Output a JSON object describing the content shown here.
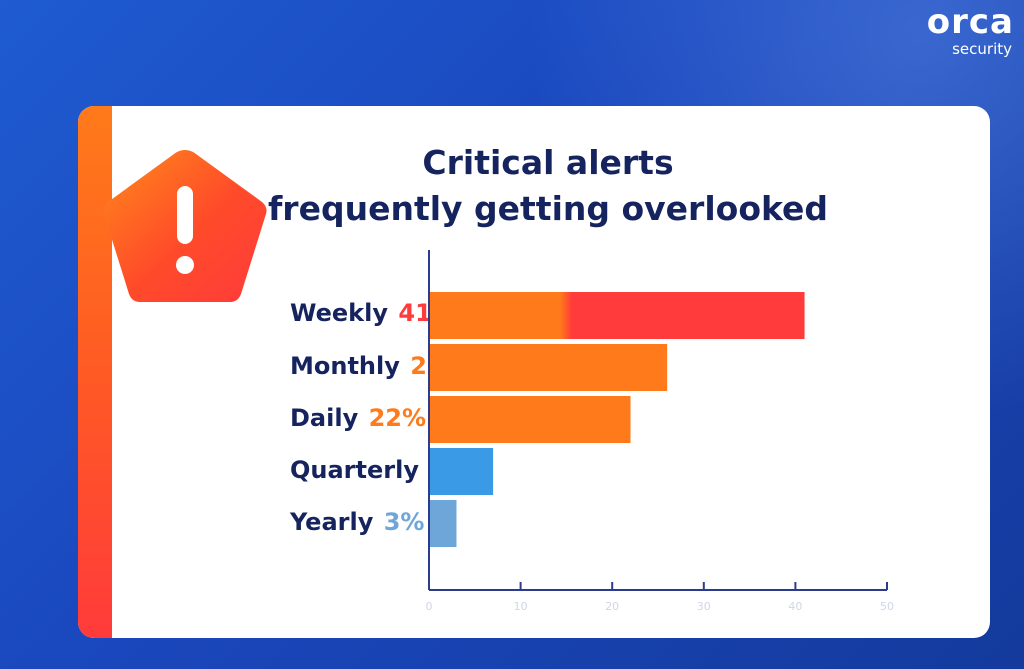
{
  "brand": {
    "name": "orca",
    "tagline": "security"
  },
  "colors": {
    "weekly": "#ff3b3b",
    "monthly": "#ff7a1a",
    "daily": "#ff7a1a",
    "quarterly": "#3b9ae6",
    "yearly": "#6ea6d9",
    "title": "#15235e"
  },
  "chart_data": {
    "type": "bar",
    "orientation": "horizontal",
    "title": "Critical alerts\nfrequently getting overlooked",
    "categories": [
      "Weekly",
      "Monthly",
      "Daily",
      "Quarterly",
      "Yearly"
    ],
    "values": [
      41,
      26,
      22,
      7,
      3
    ],
    "value_labels": [
      "41%",
      "26%",
      "22%",
      "7%",
      "3%"
    ],
    "xlim": [
      0,
      50
    ],
    "xticks": [
      0,
      10,
      20,
      30,
      40,
      50
    ],
    "xtick_labels": [
      "0",
      "10",
      "20",
      "30",
      "40",
      "50"
    ],
    "grid": false,
    "legend": "none"
  }
}
